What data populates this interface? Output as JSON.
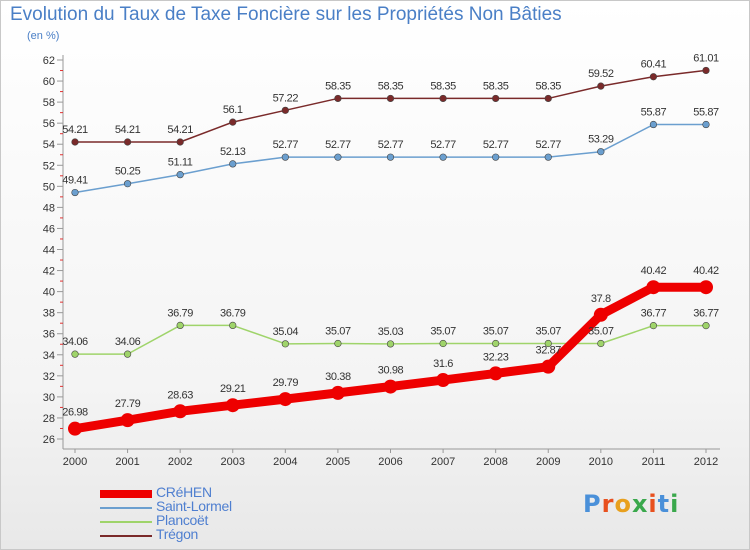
{
  "title": "Evolution du Taux de Taxe Foncière sur les Propriétés Non Bâties",
  "units": "(en %)",
  "logo": "Proxiti",
  "colors": {
    "CRéHEN": "#ee0000",
    "Saint-Lormel": "#6b9fcf",
    "Plancoët": "#9fd46a",
    "Trégon": "#7a2a2a"
  },
  "chart_data": {
    "type": "line",
    "categories": [
      "2000",
      "2001",
      "2002",
      "2003",
      "2004",
      "2005",
      "2006",
      "2007",
      "2008",
      "2009",
      "2010",
      "2011",
      "2012"
    ],
    "ylim": [
      26,
      62
    ],
    "yticks": [
      26,
      28,
      30,
      32,
      34,
      36,
      38,
      40,
      42,
      44,
      46,
      48,
      50,
      52,
      54,
      56,
      58,
      60,
      62
    ],
    "grid": false,
    "legend_position": "bottom-left",
    "series": [
      {
        "name": "CRéHEN",
        "values": [
          26.98,
          27.79,
          28.63,
          29.21,
          29.79,
          30.38,
          30.98,
          31.6,
          32.23,
          32.87,
          37.8,
          40.42,
          40.42
        ],
        "labels": [
          "26.98",
          "27.79",
          "28.63",
          "29.21",
          "29.79",
          "30.38",
          "30.98",
          "31.6",
          "32.23",
          "32.87",
          "37.8",
          "40.42",
          "40.42"
        ]
      },
      {
        "name": "Saint-Lormel",
        "values": [
          49.41,
          50.25,
          51.11,
          52.13,
          52.77,
          52.77,
          52.77,
          52.77,
          52.77,
          52.77,
          53.29,
          55.87,
          55.87
        ],
        "labels": [
          "49.41",
          "50.25",
          "51.11",
          "52.13",
          "52.77",
          "52.77",
          "52.77",
          "52.77",
          "52.77",
          "52.77",
          "53.29",
          "55.87",
          "55.87"
        ]
      },
      {
        "name": "Plancoët",
        "values": [
          34.06,
          34.06,
          36.79,
          36.79,
          35.04,
          35.07,
          35.03,
          35.07,
          35.07,
          35.07,
          35.07,
          36.77,
          36.77
        ],
        "labels": [
          "34.06",
          "34.06",
          "36.79",
          "36.79",
          "35.04",
          "35.07",
          "35.03",
          "35.07",
          "35.07",
          "35.07",
          "35.07",
          "36.77",
          "36.77"
        ]
      },
      {
        "name": "Trégon",
        "values": [
          54.21,
          54.21,
          54.21,
          56.1,
          57.22,
          58.35,
          58.35,
          58.35,
          58.35,
          58.35,
          59.52,
          60.41,
          61.01
        ],
        "labels": [
          "54.21",
          "54.21",
          "54.21",
          "56.1",
          "57.22",
          "58.35",
          "58.35",
          "58.35",
          "58.35",
          "58.35",
          "59.52",
          "60.41",
          "61.01"
        ]
      }
    ]
  }
}
